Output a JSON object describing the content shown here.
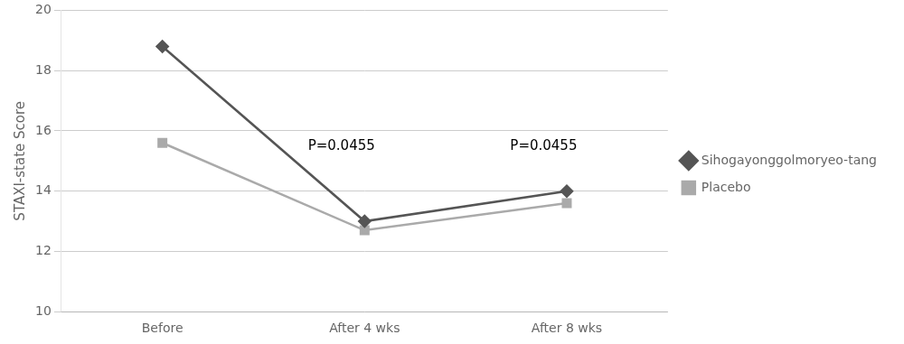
{
  "chart_data": {
    "type": "line",
    "categories": [
      "Before",
      "After 4 wks",
      "After 8 wks"
    ],
    "series": [
      {
        "name": "Sihogayonggolmoryeo-tang",
        "color": "#555555",
        "marker": "diamond",
        "values": [
          18.8,
          13.0,
          14.0
        ]
      },
      {
        "name": "Placebo",
        "color": "#aaaaaa",
        "marker": "square",
        "values": [
          15.6,
          12.7,
          13.6
        ]
      }
    ],
    "y_label": "STAXI-state Score",
    "ylim": [
      10,
      20
    ],
    "yticks": [
      10,
      12,
      14,
      16,
      18,
      20
    ],
    "annotations": [
      {
        "text": "P=0.0455",
        "x": 0.72,
        "y": 15.5
      },
      {
        "text": "P=0.0455",
        "x": 1.72,
        "y": 15.5
      }
    ],
    "grid": "y",
    "legend": "right"
  }
}
